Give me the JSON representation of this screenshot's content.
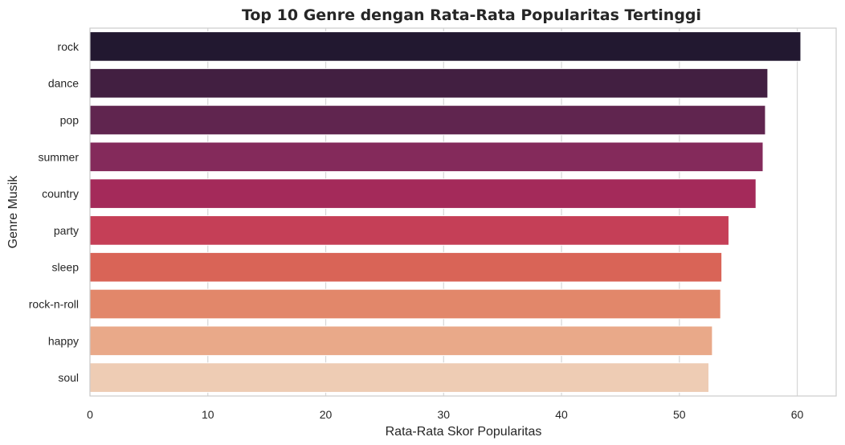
{
  "chart_data": {
    "type": "bar",
    "orientation": "horizontal",
    "title": "Top 10 Genre dengan Rata-Rata Popularitas Tertinggi",
    "xlabel": "Rata-Rata Skor Popularitas",
    "ylabel": "Genre Musik",
    "categories": [
      "rock",
      "dance",
      "pop",
      "summer",
      "country",
      "party",
      "sleep",
      "rock-n-roll",
      "happy",
      "soul"
    ],
    "values": [
      60.3,
      57.5,
      57.3,
      57.1,
      56.5,
      54.2,
      53.6,
      53.5,
      52.8,
      52.5
    ],
    "colors": [
      "#221830",
      "#421f41",
      "#60254f",
      "#842a5b",
      "#a42a5a",
      "#c53f57",
      "#d96457",
      "#e2876a",
      "#e9a989",
      "#eeccb4"
    ],
    "xlim": [
      0,
      63.3
    ],
    "xticks": [
      0,
      10,
      20,
      30,
      40,
      50,
      60
    ],
    "grid": "x",
    "legend": "none"
  }
}
